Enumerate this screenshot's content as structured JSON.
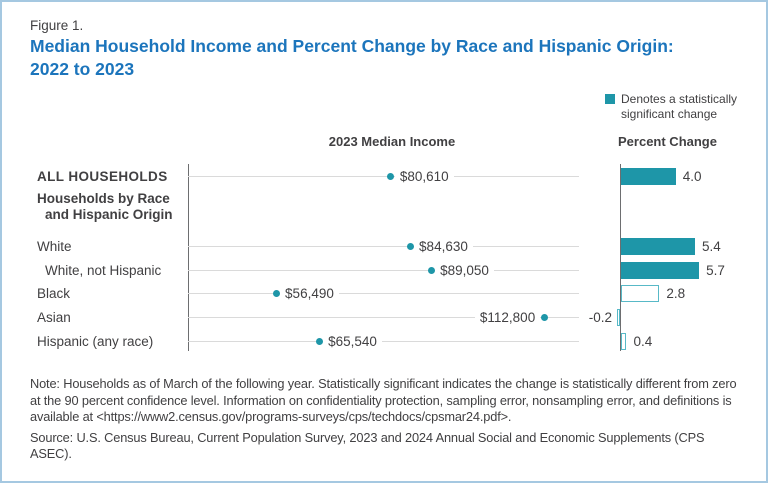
{
  "figure": {
    "label": "Figure 1.",
    "title": "Median Household Income and Percent Change by Race and Hispanic Origin: 2022 to 2023"
  },
  "legend": {
    "text": "Denotes a statistically significant change"
  },
  "chart_data": {
    "type": "dot-bar",
    "income_header": "2023 Median Income",
    "percent_header": "Percent Change",
    "income_axis": {
      "min": 38000,
      "max": 122000,
      "unit": "USD"
    },
    "percent_axis": {
      "min": -0.5,
      "max": 6.0,
      "unit": "percent"
    },
    "section_label": {
      "line1": "Households by Race",
      "line2": "and Hispanic Origin"
    },
    "rows": [
      {
        "label": "ALL HOUSEHOLDS",
        "income": 80610,
        "income_label": "$80,610",
        "change": 4.0,
        "change_label": "4.0",
        "significant": true,
        "income_label_side": "right"
      },
      {
        "label": "White",
        "income": 84630,
        "income_label": "$84,630",
        "change": 5.4,
        "change_label": "5.4",
        "significant": true,
        "income_label_side": "right"
      },
      {
        "label": "White, not Hispanic",
        "income": 89050,
        "income_label": "$89,050",
        "change": 5.7,
        "change_label": "5.7",
        "significant": true,
        "income_label_side": "right"
      },
      {
        "label": "Black",
        "income": 56490,
        "income_label": "$56,490",
        "change": 2.8,
        "change_label": "2.8",
        "significant": false,
        "income_label_side": "right"
      },
      {
        "label": "Asian",
        "income": 112800,
        "income_label": "$112,800",
        "change": -0.2,
        "change_label": "-0.2",
        "significant": false,
        "income_label_side": "left"
      },
      {
        "label": "Hispanic (any race)",
        "income": 65540,
        "income_label": "$65,540",
        "change": 0.4,
        "change_label": "0.4",
        "significant": false,
        "income_label_side": "right"
      }
    ]
  },
  "notes": {
    "note": "Note: Households as of March of the following year. Statistically significant indicates the change is statistically different from zero at the 90 percent confidence level. Information on confidentiality protection, sampling error, nonsampling error, and definitions is available at <https://www2.census.gov/programs-surveys/cps/techdocs/cpsmar24.pdf>.",
    "source": "Source: U.S. Census Bureau, Current Population Survey, 2023 and 2024 Annual Social and Economic Supplements (CPS ASEC)."
  },
  "colors": {
    "accent_teal": "#1e96a8",
    "outline_teal": "#58b9c7",
    "title_blue": "#1c75bc",
    "text_dark": "#414042",
    "frame_blue": "#a5c8e1"
  }
}
